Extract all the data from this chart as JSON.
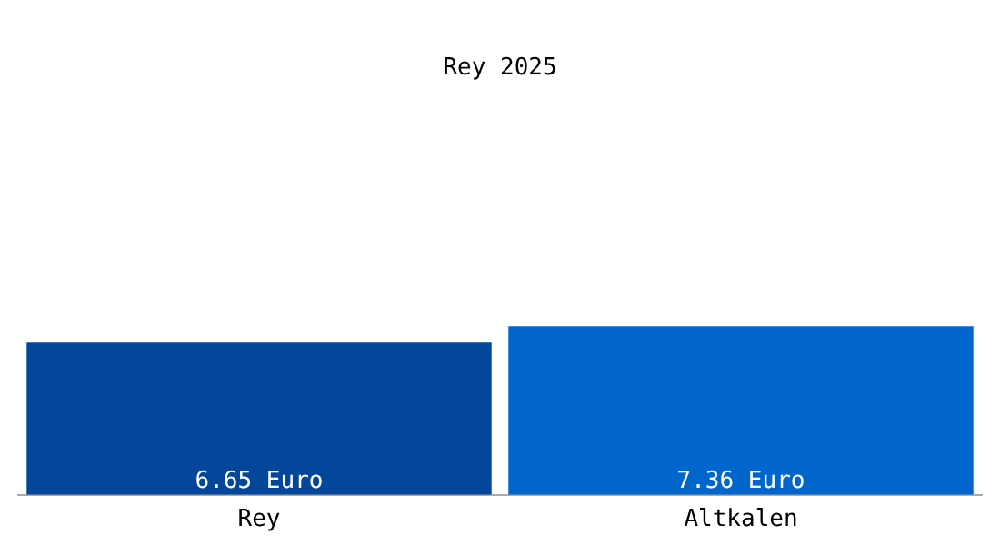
{
  "chart_data": {
    "type": "bar",
    "title": "Rey 2025",
    "categories": [
      "Rey",
      "Altkalen"
    ],
    "values": [
      6.65,
      7.36
    ],
    "colors": [
      "#04479a",
      "#0066cc"
    ],
    "value_labels": [
      "6.65 Euro",
      "7.36 Euro"
    ],
    "tick_labels": "x"
  }
}
